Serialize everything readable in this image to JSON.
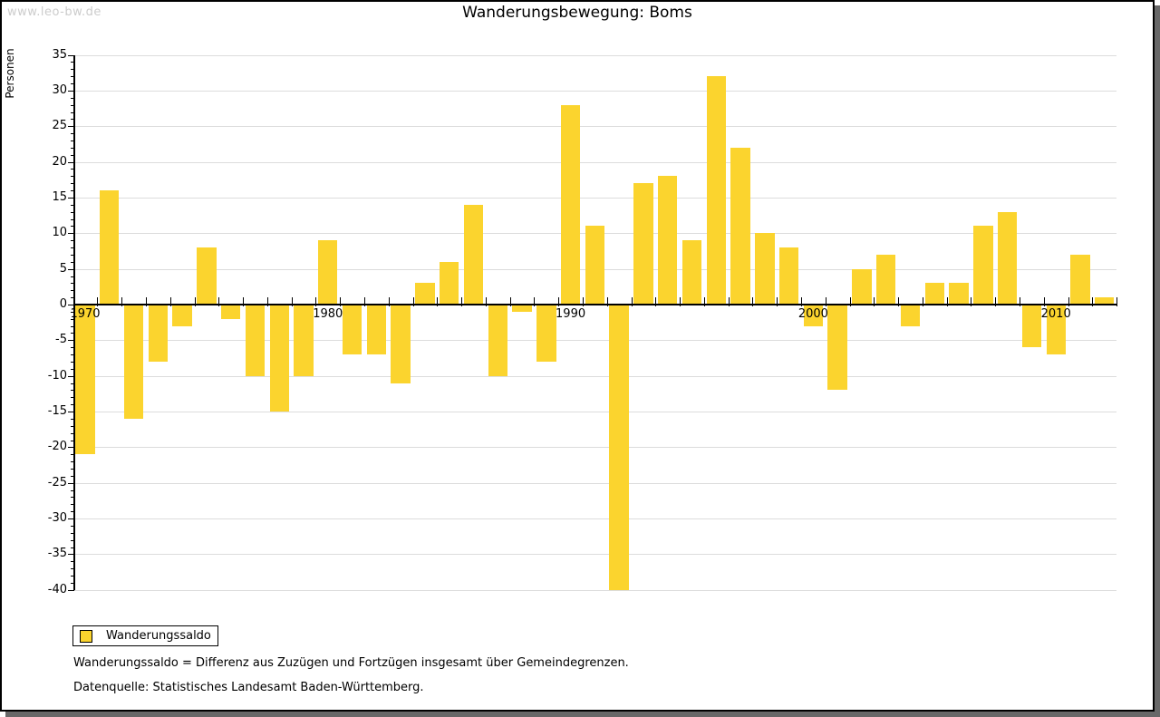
{
  "watermark": "www.leo-bw.de",
  "title": "Wanderungsbewegung: Boms",
  "y_axis_label": "Personen",
  "legend": {
    "label": "Wanderungssaldo"
  },
  "footnotes": [
    "Wanderungssaldo = Differenz aus Zuzügen und Fortzügen insgesamt über Gemeindegrenzen.",
    "Datenquelle: Statistisches Landesamt Baden-Württemberg."
  ],
  "colors": {
    "bar": "#fbd42e",
    "grid": "#dcdcdc",
    "axis": "#000000",
    "watermark": "#cccccc",
    "border": "#000000",
    "shadow": "#686868"
  },
  "chart_data": {
    "type": "bar",
    "title": "Wanderungsbewegung: Boms",
    "xlabel": "",
    "ylabel": "Personen",
    "x": [
      1970,
      1971,
      1972,
      1973,
      1974,
      1975,
      1976,
      1977,
      1978,
      1979,
      1980,
      1981,
      1982,
      1983,
      1984,
      1985,
      1986,
      1987,
      1988,
      1989,
      1990,
      1991,
      1992,
      1993,
      1994,
      1995,
      1996,
      1997,
      1998,
      1999,
      2000,
      2001,
      2002,
      2003,
      2004,
      2005,
      2006,
      2007,
      2008,
      2009,
      2010,
      2011,
      2012
    ],
    "series": [
      {
        "name": "Wanderungssaldo",
        "values": [
          -21,
          16,
          -16,
          -8,
          -3,
          8,
          -2,
          -10,
          -15,
          -10,
          9,
          -7,
          -7,
          -11,
          3,
          6,
          14,
          -10,
          -1,
          -8,
          28,
          11,
          -40,
          17,
          18,
          9,
          32,
          22,
          10,
          8,
          -3,
          -12,
          5,
          7,
          -3,
          3,
          3,
          11,
          13,
          -6,
          -7,
          7,
          1
        ]
      }
    ],
    "ylim": [
      -40,
      35
    ],
    "ytick_step": 5,
    "xtick_labels": [
      "1970",
      "1980",
      "1990",
      "2000",
      "2010"
    ],
    "grid": true,
    "legend_position": "bottom-left"
  }
}
